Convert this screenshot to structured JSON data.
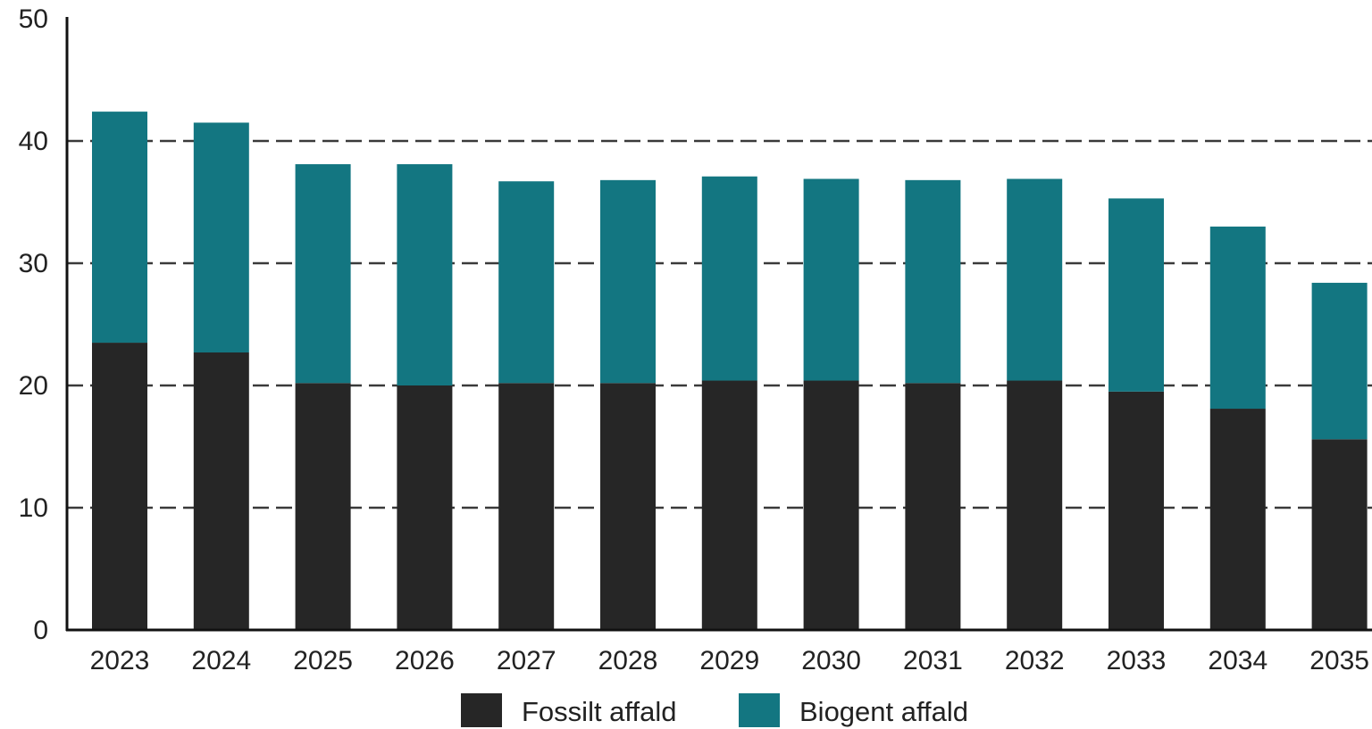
{
  "chart_data": {
    "type": "bar",
    "stacked": true,
    "categories": [
      "2023",
      "2024",
      "2025",
      "2026",
      "2027",
      "2028",
      "2029",
      "2030",
      "2031",
      "2032",
      "2033",
      "2034",
      "2035"
    ],
    "series": [
      {
        "name": "Fossilt affald",
        "color": "#262626",
        "values": [
          23.5,
          22.7,
          20.2,
          20.0,
          20.2,
          20.2,
          20.4,
          20.4,
          20.2,
          20.4,
          19.5,
          18.1,
          15.6
        ]
      },
      {
        "name": "Biogent affald",
        "color": "#137681",
        "values": [
          18.9,
          18.8,
          17.9,
          18.1,
          16.5,
          16.6,
          16.7,
          16.5,
          16.6,
          16.5,
          15.8,
          14.9,
          12.8
        ]
      }
    ],
    "ylim": [
      0,
      50
    ],
    "yticks": [
      "0",
      "10",
      "20",
      "30",
      "40",
      "50"
    ],
    "grid": true,
    "legend": "bottom-center"
  }
}
